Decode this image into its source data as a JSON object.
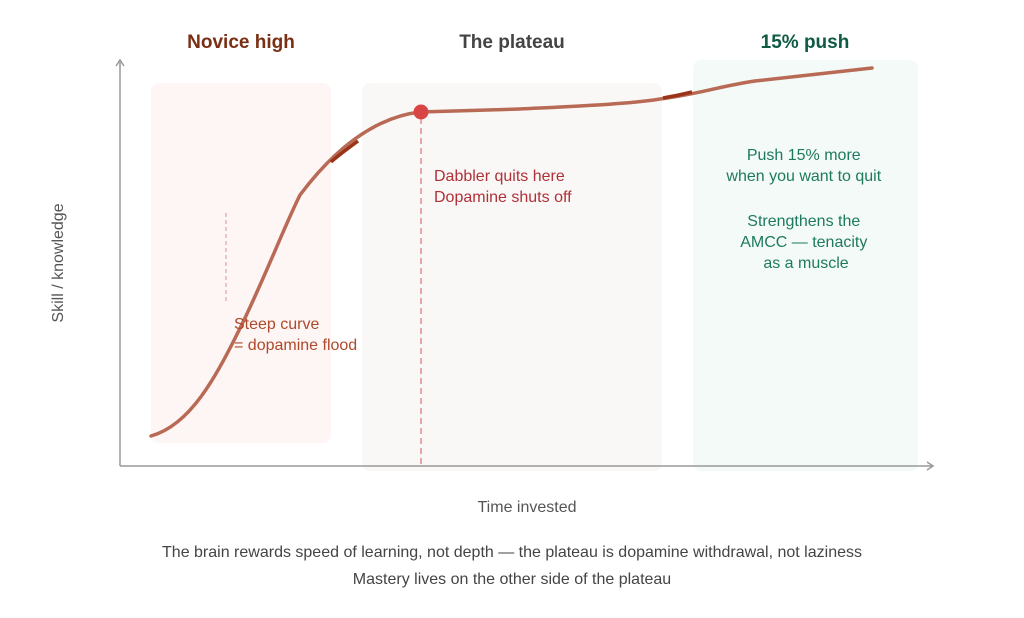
{
  "regions": {
    "novice": {
      "title": "Novice high",
      "color": "#7a2e14",
      "fill": "#fdf6f5"
    },
    "plateau": {
      "title": "The plateau",
      "color": "#444444",
      "fill": "#f9f8f6"
    },
    "push": {
      "title": "15% push",
      "color": "#0f5a44",
      "fill": "#f3faf7"
    }
  },
  "axes": {
    "y_label": "Skill / knowledge",
    "x_label": "Time invested"
  },
  "annotations": {
    "steep_1": "Steep curve",
    "steep_2": "= dopamine flood",
    "dabbler_1": "Dabbler quits here",
    "dabbler_2": "Dopamine shuts off",
    "push_1": "Push 15% more",
    "push_2": "when you want to quit",
    "push_3": "Strengthens the",
    "push_4": "AMCC — tenacity",
    "push_5": "as a muscle"
  },
  "colors": {
    "curve": "#b86a55",
    "quit_point": "#d94444",
    "steep_text": "#b0482a",
    "dabbler_text": "#b03038",
    "push_text": "#1e7a5e"
  },
  "caption": {
    "line1": "The brain rewards speed of learning, not depth — the plateau is dopamine withdrawal, not laziness",
    "line2": "Mastery lives on the other side of the plateau"
  }
}
